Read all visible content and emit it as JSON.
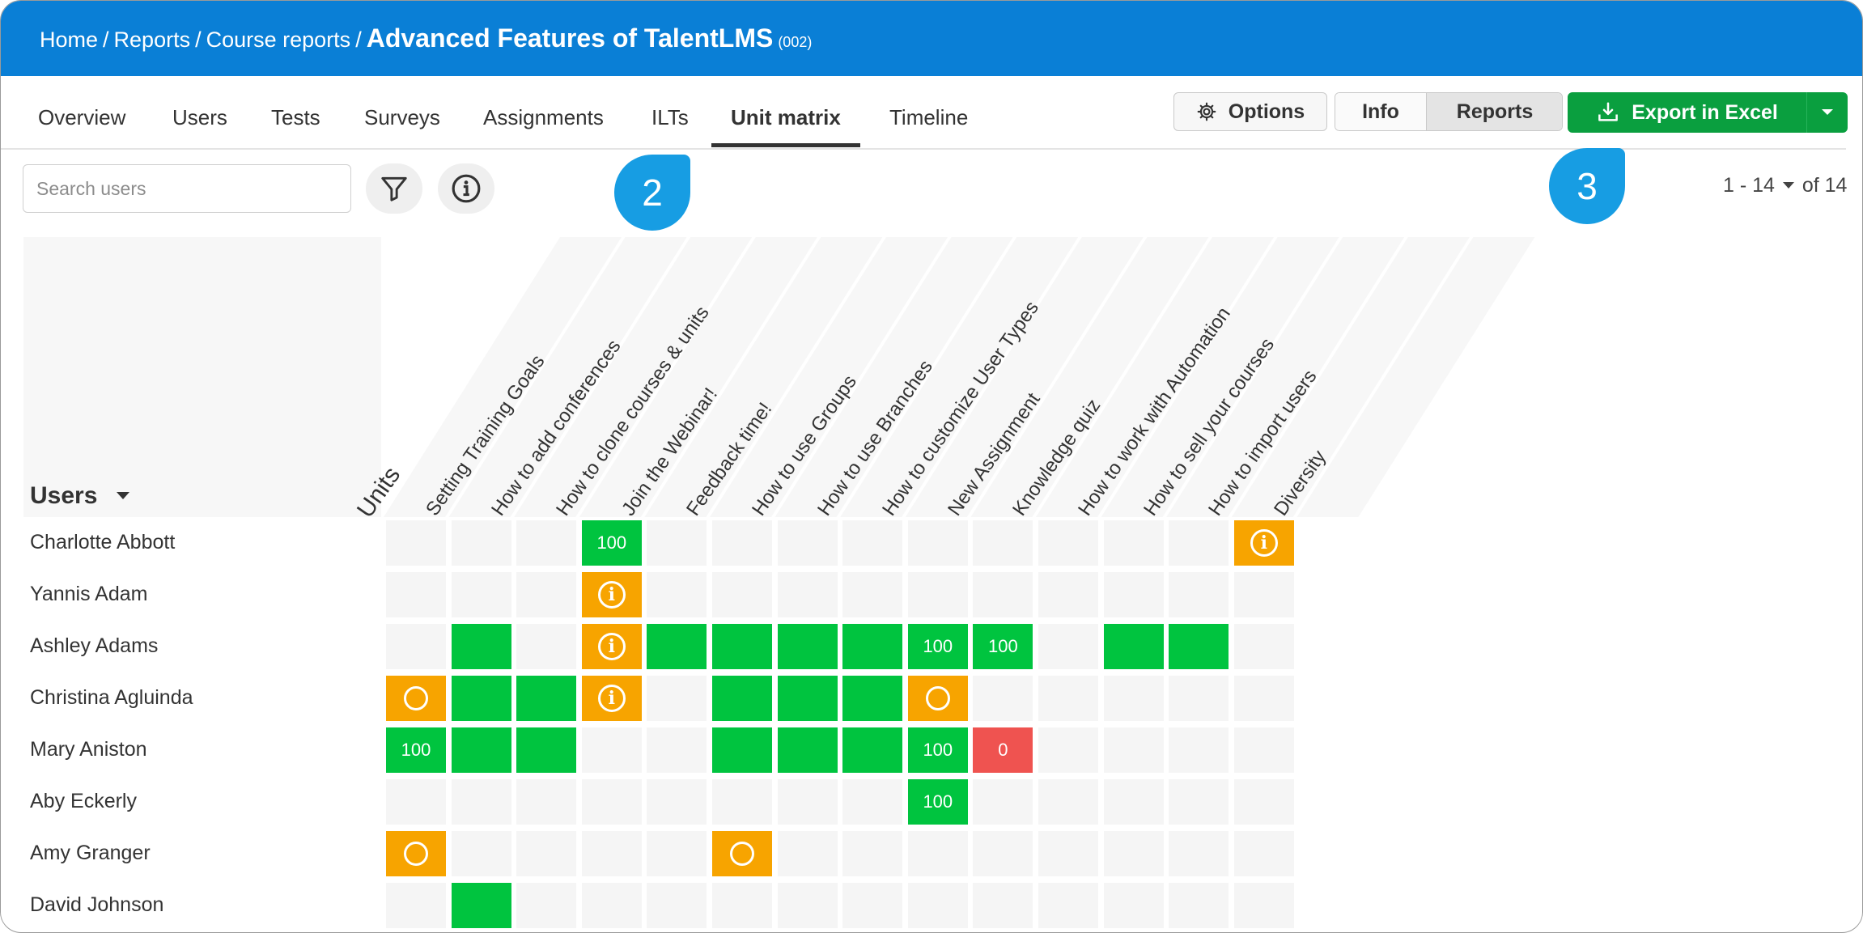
{
  "breadcrumb": {
    "home": "Home",
    "reports": "Reports",
    "course_reports": "Course reports",
    "course_title": "Advanced Features of TalentLMS",
    "course_code": "(002)",
    "separator": "/"
  },
  "tabs": [
    "Overview",
    "Users",
    "Tests",
    "Surveys",
    "Assignments",
    "ILTs",
    "Unit matrix",
    "Timeline"
  ],
  "active_tab": "Unit matrix",
  "toolbar": {
    "options_label": "Options",
    "info_label": "Info",
    "reports_label": "Reports",
    "export_label": "Export in Excel"
  },
  "search": {
    "placeholder": "Search users",
    "value": ""
  },
  "pagination": {
    "range": "1 - 14",
    "of_label": "of 14"
  },
  "callouts": [
    "2",
    "3"
  ],
  "matrix": {
    "users_header": "Users",
    "units_header": "Units",
    "units": [
      "Setting Training Goals",
      "How to add conferences",
      "How to clone courses & units",
      "Join the Webinar!",
      "Feedback time!",
      "How to use Groups",
      "How to use Branches",
      "How to customize User Types",
      "New Assignment",
      "Knowledge quiz",
      "How to work with Automation",
      "How to sell your courses",
      "How to import users",
      "Diversity"
    ],
    "rows": [
      {
        "user": "Charlotte Abbott",
        "cells": [
          [
            "empty",
            ""
          ],
          [
            "empty",
            ""
          ],
          [
            "empty",
            ""
          ],
          [
            "green",
            "100"
          ],
          [
            "empty",
            ""
          ],
          [
            "empty",
            ""
          ],
          [
            "empty",
            ""
          ],
          [
            "empty",
            ""
          ],
          [
            "empty",
            ""
          ],
          [
            "empty",
            ""
          ],
          [
            "empty",
            ""
          ],
          [
            "empty",
            ""
          ],
          [
            "empty",
            ""
          ],
          [
            "orange-info",
            ""
          ]
        ]
      },
      {
        "user": "Yannis Adam",
        "cells": [
          [
            "empty",
            ""
          ],
          [
            "empty",
            ""
          ],
          [
            "empty",
            ""
          ],
          [
            "orange-info",
            ""
          ],
          [
            "empty",
            ""
          ],
          [
            "empty",
            ""
          ],
          [
            "empty",
            ""
          ],
          [
            "empty",
            ""
          ],
          [
            "empty",
            ""
          ],
          [
            "empty",
            ""
          ],
          [
            "empty",
            ""
          ],
          [
            "empty",
            ""
          ],
          [
            "empty",
            ""
          ],
          [
            "empty",
            ""
          ]
        ]
      },
      {
        "user": "Ashley Adams",
        "cells": [
          [
            "empty",
            ""
          ],
          [
            "green",
            ""
          ],
          [
            "empty",
            ""
          ],
          [
            "orange-info",
            ""
          ],
          [
            "green",
            ""
          ],
          [
            "green",
            ""
          ],
          [
            "green",
            ""
          ],
          [
            "green",
            ""
          ],
          [
            "green",
            "100"
          ],
          [
            "green",
            "100"
          ],
          [
            "empty",
            ""
          ],
          [
            "green",
            ""
          ],
          [
            "green",
            ""
          ],
          [
            "empty",
            ""
          ]
        ]
      },
      {
        "user": "Christina Agluinda",
        "cells": [
          [
            "orange-ring",
            ""
          ],
          [
            "green",
            ""
          ],
          [
            "green",
            ""
          ],
          [
            "orange-info",
            ""
          ],
          [
            "empty",
            ""
          ],
          [
            "green",
            ""
          ],
          [
            "green",
            ""
          ],
          [
            "green",
            ""
          ],
          [
            "orange-ring",
            ""
          ],
          [
            "empty",
            ""
          ],
          [
            "empty",
            ""
          ],
          [
            "empty",
            ""
          ],
          [
            "empty",
            ""
          ],
          [
            "empty",
            ""
          ]
        ]
      },
      {
        "user": "Mary Aniston",
        "cells": [
          [
            "green",
            "100"
          ],
          [
            "green",
            ""
          ],
          [
            "green",
            ""
          ],
          [
            "empty",
            ""
          ],
          [
            "empty",
            ""
          ],
          [
            "green",
            ""
          ],
          [
            "green",
            ""
          ],
          [
            "green",
            ""
          ],
          [
            "green",
            "100"
          ],
          [
            "red",
            "0"
          ],
          [
            "empty",
            ""
          ],
          [
            "empty",
            ""
          ],
          [
            "empty",
            ""
          ],
          [
            "empty",
            ""
          ]
        ]
      },
      {
        "user": "Aby Eckerly",
        "cells": [
          [
            "empty",
            ""
          ],
          [
            "empty",
            ""
          ],
          [
            "empty",
            ""
          ],
          [
            "empty",
            ""
          ],
          [
            "empty",
            ""
          ],
          [
            "empty",
            ""
          ],
          [
            "empty",
            ""
          ],
          [
            "empty",
            ""
          ],
          [
            "green",
            "100"
          ],
          [
            "empty",
            ""
          ],
          [
            "empty",
            ""
          ],
          [
            "empty",
            ""
          ],
          [
            "empty",
            ""
          ],
          [
            "empty",
            ""
          ]
        ]
      },
      {
        "user": "Amy Granger",
        "cells": [
          [
            "orange-ring",
            ""
          ],
          [
            "empty",
            ""
          ],
          [
            "empty",
            ""
          ],
          [
            "empty",
            ""
          ],
          [
            "empty",
            ""
          ],
          [
            "orange-ring",
            ""
          ],
          [
            "empty",
            ""
          ],
          [
            "empty",
            ""
          ],
          [
            "empty",
            ""
          ],
          [
            "empty",
            ""
          ],
          [
            "empty",
            ""
          ],
          [
            "empty",
            ""
          ],
          [
            "empty",
            ""
          ],
          [
            "empty",
            ""
          ]
        ]
      },
      {
        "user": "David Johnson",
        "cells": [
          [
            "empty",
            ""
          ],
          [
            "green",
            ""
          ],
          [
            "empty",
            ""
          ],
          [
            "empty",
            ""
          ],
          [
            "empty",
            ""
          ],
          [
            "empty",
            ""
          ],
          [
            "empty",
            ""
          ],
          [
            "empty",
            ""
          ],
          [
            "empty",
            ""
          ],
          [
            "empty",
            ""
          ],
          [
            "empty",
            ""
          ],
          [
            "empty",
            ""
          ],
          [
            "empty",
            ""
          ],
          [
            "empty",
            ""
          ]
        ]
      }
    ]
  },
  "colors": {
    "header_blue": "#0a7fd6",
    "completed_green": "#00c43f",
    "in_progress_orange": "#f7a400",
    "failed_red": "#ef5350",
    "export_green": "#0a9f3f",
    "callout_blue": "#179de3"
  },
  "icons": {
    "options": "gear-icon",
    "export": "download-icon",
    "filter": "filter-icon",
    "info": "info-icon",
    "sort": "caret-down-icon"
  }
}
